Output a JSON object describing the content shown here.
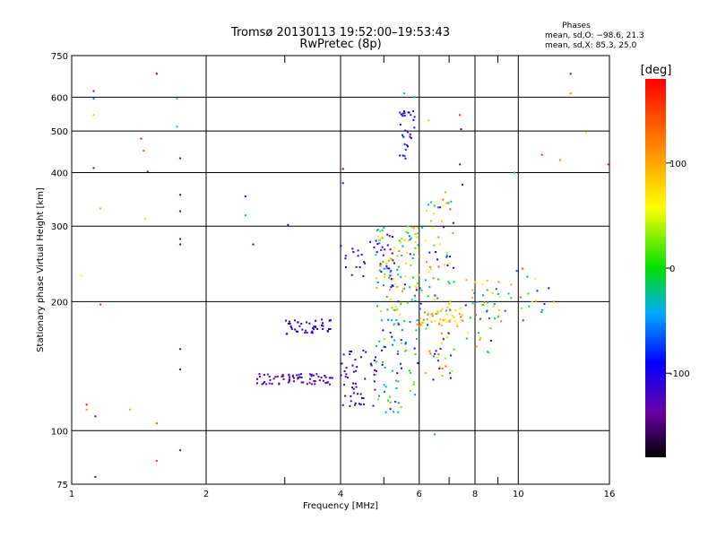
{
  "chart_data": {
    "type": "scatter",
    "title": "Tromsø 20130113 19:52:00–19:53:43",
    "subtitle": "RwPretec (8p)",
    "xlabel": "Frequency [MHz]",
    "ylabel": "Stationary phase Virtual Height [km]",
    "x_scale": "log",
    "y_scale": "log",
    "xlim": [
      1,
      16
    ],
    "ylim": [
      75,
      750
    ],
    "x_ticks": [
      1,
      2,
      4,
      6,
      8,
      10,
      16
    ],
    "x_tick_labels": [
      "1",
      "2",
      "4",
      "6",
      "8",
      "10",
      "16"
    ],
    "x_minor_ticks": [
      3,
      5,
      7,
      9
    ],
    "y_ticks": [
      75,
      100,
      200,
      300,
      400,
      500,
      600,
      750
    ],
    "y_tick_labels": [
      "75",
      "100",
      "200",
      "300",
      "400",
      "500",
      "600",
      "750"
    ],
    "grid": true,
    "legend": {
      "title": "Phases",
      "lines": [
        "mean, sd,O: −98.6, 21.3",
        "mean, sd,X:  85.3, 25.0"
      ],
      "placement": "top-right"
    },
    "colorbar": {
      "label": "[deg]",
      "range": [
        -180,
        180
      ],
      "ticks": [
        100,
        0,
        -100
      ],
      "tick_labels": [
        "100",
        "0",
        "-100"
      ]
    },
    "clusters": [
      {
        "x": [
          3.0,
          3.85
        ],
        "y": [
          168,
          182
        ],
        "phase": [
          -120,
          -95
        ],
        "n": 45
      },
      {
        "x": [
          2.6,
          3.9
        ],
        "y": [
          128,
          136
        ],
        "phase": [
          -140,
          -110
        ],
        "n": 70
      },
      {
        "x": [
          4.0,
          4.8
        ],
        "y": [
          113,
          155
        ],
        "phase": [
          -125,
          -100
        ],
        "n": 50
      },
      {
        "x": [
          4.0,
          5.3
        ],
        "y": [
          225,
          290
        ],
        "phase": [
          -125,
          -95
        ],
        "n": 40
      },
      {
        "x": [
          4.8,
          6.0
        ],
        "y": [
          110,
          175
        ],
        "phase": [
          -110,
          40
        ],
        "n": 60
      },
      {
        "x": [
          4.8,
          6.1
        ],
        "y": [
          175,
          300
        ],
        "phase": [
          -110,
          120
        ],
        "n": 130
      },
      {
        "x": [
          5.4,
          5.9
        ],
        "y": [
          430,
          560
        ],
        "phase": [
          -120,
          -70
        ],
        "n": 30
      },
      {
        "x": [
          6.2,
          7.2
        ],
        "y": [
          130,
          360
        ],
        "phase": [
          -120,
          140
        ],
        "n": 90
      },
      {
        "x": [
          6.0,
          7.5
        ],
        "y": [
          175,
          195
        ],
        "phase": [
          60,
          130
        ],
        "n": 40
      },
      {
        "x": [
          7.5,
          9.5
        ],
        "y": [
          150,
          225
        ],
        "phase": [
          -110,
          130
        ],
        "n": 50
      },
      {
        "x": [
          9.5,
          11.5
        ],
        "y": [
          180,
          240
        ],
        "phase": [
          -90,
          180
        ],
        "n": 18
      }
    ],
    "points": [
      {
        "x": 1.05,
        "y": 230,
        "phase": 60
      },
      {
        "x": 1.08,
        "y": 115,
        "phase": 170
      },
      {
        "x": 1.08,
        "y": 112,
        "phase": 110
      },
      {
        "x": 1.13,
        "y": 108,
        "phase": -125
      },
      {
        "x": 1.12,
        "y": 545,
        "phase": 90
      },
      {
        "x": 1.12,
        "y": 595,
        "phase": -60
      },
      {
        "x": 1.12,
        "y": 620,
        "phase": -130
      },
      {
        "x": 1.12,
        "y": 410,
        "phase": -130
      },
      {
        "x": 1.13,
        "y": 78,
        "phase": -130
      },
      {
        "x": 1.16,
        "y": 330,
        "phase": 30
      },
      {
        "x": 1.16,
        "y": 197,
        "phase": 170
      },
      {
        "x": 1.35,
        "y": 112,
        "phase": 100
      },
      {
        "x": 1.43,
        "y": 480,
        "phase": 170
      },
      {
        "x": 1.45,
        "y": 450,
        "phase": 140
      },
      {
        "x": 1.46,
        "y": 312,
        "phase": 40
      },
      {
        "x": 1.48,
        "y": 402,
        "phase": -140
      },
      {
        "x": 1.55,
        "y": 680,
        "phase": -140
      },
      {
        "x": 1.55,
        "y": 104,
        "phase": 140
      },
      {
        "x": 1.55,
        "y": 85,
        "phase": 150
      },
      {
        "x": 1.72,
        "y": 596,
        "phase": -20
      },
      {
        "x": 1.72,
        "y": 512,
        "phase": -40
      },
      {
        "x": 1.75,
        "y": 432,
        "phase": -140
      },
      {
        "x": 1.75,
        "y": 355,
        "phase": -140
      },
      {
        "x": 1.75,
        "y": 325,
        "phase": -140
      },
      {
        "x": 1.75,
        "y": 280,
        "phase": -120
      },
      {
        "x": 1.75,
        "y": 272,
        "phase": -140
      },
      {
        "x": 1.75,
        "y": 155,
        "phase": -120
      },
      {
        "x": 1.75,
        "y": 139,
        "phase": -130
      },
      {
        "x": 1.75,
        "y": 90,
        "phase": -130
      },
      {
        "x": 2.45,
        "y": 352,
        "phase": -130
      },
      {
        "x": 2.45,
        "y": 318,
        "phase": -30
      },
      {
        "x": 2.55,
        "y": 272,
        "phase": -150
      },
      {
        "x": 3.05,
        "y": 302,
        "phase": -120
      },
      {
        "x": 4.05,
        "y": 408,
        "phase": -140
      },
      {
        "x": 4.05,
        "y": 378,
        "phase": -120
      },
      {
        "x": 5.55,
        "y": 612,
        "phase": -20
      },
      {
        "x": 5.85,
        "y": 600,
        "phase": -40
      },
      {
        "x": 6.3,
        "y": 530,
        "phase": 90
      },
      {
        "x": 6.5,
        "y": 98,
        "phase": -30
      },
      {
        "x": 7.4,
        "y": 545,
        "phase": 160
      },
      {
        "x": 7.45,
        "y": 505,
        "phase": -120
      },
      {
        "x": 7.4,
        "y": 418,
        "phase": -140
      },
      {
        "x": 7.5,
        "y": 375,
        "phase": -140
      },
      {
        "x": 9.8,
        "y": 400,
        "phase": -40
      },
      {
        "x": 11.3,
        "y": 440,
        "phase": 160
      },
      {
        "x": 12.4,
        "y": 428,
        "phase": 120
      },
      {
        "x": 13.1,
        "y": 680,
        "phase": -140
      },
      {
        "x": 13.1,
        "y": 612,
        "phase": 120
      },
      {
        "x": 14.2,
        "y": 495,
        "phase": 50
      },
      {
        "x": 15.9,
        "y": 418,
        "phase": 160
      },
      {
        "x": 11.7,
        "y": 215,
        "phase": -100
      },
      {
        "x": 12.0,
        "y": 200,
        "phase": 120
      }
    ]
  }
}
